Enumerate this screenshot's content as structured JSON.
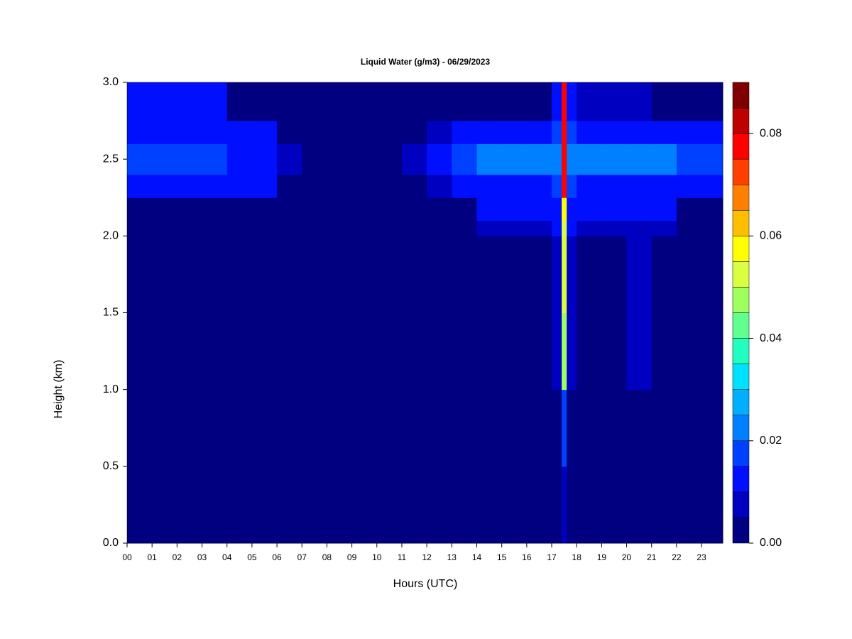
{
  "chart_data": {
    "type": "contour",
    "title": "Liquid Water (g/m3) - 06/29/2023",
    "xlabel": "Hours (UTC)",
    "ylabel": "Height (km)",
    "xlim": [
      0,
      23.85
    ],
    "ylim": [
      0,
      3
    ],
    "x_edges": [
      0,
      1,
      2,
      3,
      4,
      5,
      6,
      7,
      11,
      12,
      13,
      14,
      15,
      16,
      17,
      17.4,
      17.6,
      18,
      19,
      20,
      21,
      22,
      23.85
    ],
    "y_edges": [
      0,
      0.5,
      1,
      1.5,
      2,
      2.1,
      2.25,
      2.4,
      2.6,
      2.75,
      3
    ],
    "z": [
      [
        0.002,
        0.002,
        0.002,
        0.002,
        0.002,
        0.002,
        0.002,
        0.002,
        0.002,
        0.002,
        0.002,
        0.002,
        0.002,
        0.002,
        0.002,
        0.008,
        0.002,
        0.002,
        0.002,
        0.002,
        0.002,
        0.002
      ],
      [
        0.002,
        0.002,
        0.002,
        0.002,
        0.002,
        0.002,
        0.002,
        0.002,
        0.002,
        0.002,
        0.002,
        0.002,
        0.002,
        0.002,
        0.002,
        0.015,
        0.002,
        0.002,
        0.002,
        0.002,
        0.002,
        0.002
      ],
      [
        0.002,
        0.002,
        0.002,
        0.002,
        0.002,
        0.002,
        0.002,
        0.002,
        0.002,
        0.002,
        0.002,
        0.002,
        0.002,
        0.002,
        0.006,
        0.045,
        0.006,
        0.002,
        0.002,
        0.006,
        0.002,
        0.002
      ],
      [
        0.002,
        0.002,
        0.002,
        0.002,
        0.002,
        0.002,
        0.002,
        0.002,
        0.002,
        0.002,
        0.002,
        0.002,
        0.002,
        0.002,
        0.006,
        0.05,
        0.006,
        0.002,
        0.002,
        0.006,
        0.002,
        0.002
      ],
      [
        0.002,
        0.002,
        0.002,
        0.002,
        0.002,
        0.002,
        0.002,
        0.002,
        0.002,
        0.002,
        0.002,
        0.008,
        0.008,
        0.008,
        0.01,
        0.05,
        0.01,
        0.008,
        0.008,
        0.008,
        0.008,
        0.002
      ],
      [
        0.004,
        0.004,
        0.004,
        0.004,
        0.002,
        0.002,
        0.002,
        0.002,
        0.002,
        0.002,
        0.002,
        0.012,
        0.012,
        0.012,
        0.014,
        0.055,
        0.014,
        0.012,
        0.012,
        0.012,
        0.012,
        0.002
      ],
      [
        0.012,
        0.012,
        0.012,
        0.012,
        0.01,
        0.01,
        0.004,
        0.002,
        0.004,
        0.008,
        0.01,
        0.014,
        0.014,
        0.014,
        0.016,
        0.075,
        0.016,
        0.014,
        0.014,
        0.014,
        0.014,
        0.012
      ],
      [
        0.017,
        0.017,
        0.017,
        0.017,
        0.014,
        0.012,
        0.006,
        0.003,
        0.008,
        0.013,
        0.015,
        0.02,
        0.02,
        0.02,
        0.022,
        0.075,
        0.022,
        0.021,
        0.021,
        0.021,
        0.021,
        0.016
      ],
      [
        0.012,
        0.012,
        0.012,
        0.012,
        0.01,
        0.01,
        0.004,
        0.002,
        0.004,
        0.008,
        0.01,
        0.014,
        0.014,
        0.014,
        0.016,
        0.075,
        0.016,
        0.014,
        0.014,
        0.014,
        0.014,
        0.012
      ],
      [
        0.012,
        0.012,
        0.012,
        0.012,
        0.002,
        0.002,
        0.002,
        0.002,
        0.002,
        0.002,
        0.002,
        0.002,
        0.002,
        0.002,
        0.01,
        0.075,
        0.01,
        0.006,
        0.006,
        0.006,
        0.002,
        0.002
      ]
    ],
    "levels": [
      0,
      0.005,
      0.01,
      0.015,
      0.02,
      0.025,
      0.03,
      0.035,
      0.04,
      0.045,
      0.05,
      0.055,
      0.06,
      0.065,
      0.07,
      0.075,
      0.08,
      0.085,
      0.09
    ],
    "colors": [
      "#000080",
      "#0000c0",
      "#0010ff",
      "#0040ff",
      "#0080ff",
      "#00b0ff",
      "#00e0ff",
      "#20ffc0",
      "#60ff90",
      "#a0ff60",
      "#d9ff40",
      "#ffff00",
      "#ffbf00",
      "#ff8000",
      "#ff4000",
      "#ff0000",
      "#bf0000",
      "#800000"
    ],
    "xticks": [
      {
        "value": 0,
        "label": "00"
      },
      {
        "value": 1,
        "label": "01"
      },
      {
        "value": 2,
        "label": "02"
      },
      {
        "value": 3,
        "label": "03"
      },
      {
        "value": 4,
        "label": "04"
      },
      {
        "value": 5,
        "label": "05"
      },
      {
        "value": 6,
        "label": "06"
      },
      {
        "value": 7,
        "label": "07"
      },
      {
        "value": 8,
        "label": "08"
      },
      {
        "value": 9,
        "label": "09"
      },
      10,
      11,
      12,
      13,
      14,
      15,
      16,
      17,
      18,
      19,
      20,
      21,
      22,
      23
    ],
    "yticks": [
      {
        "value": 0,
        "label": "0.0"
      },
      {
        "value": 0.5,
        "label": "0.5"
      },
      {
        "value": 1,
        "label": "1.0"
      },
      {
        "value": 1.5,
        "label": "1.5"
      },
      {
        "value": 2,
        "label": "2.0"
      },
      {
        "value": 2.5,
        "label": "2.5"
      },
      {
        "value": 3,
        "label": "3.0"
      }
    ],
    "cticks": [
      {
        "value": 0,
        "label": "0.00"
      },
      {
        "value": 0.02,
        "label": "0.02"
      },
      {
        "value": 0.04,
        "label": "0.04"
      },
      {
        "value": 0.06,
        "label": "0.06"
      },
      {
        "value": 0.08,
        "label": "0.08"
      }
    ]
  }
}
